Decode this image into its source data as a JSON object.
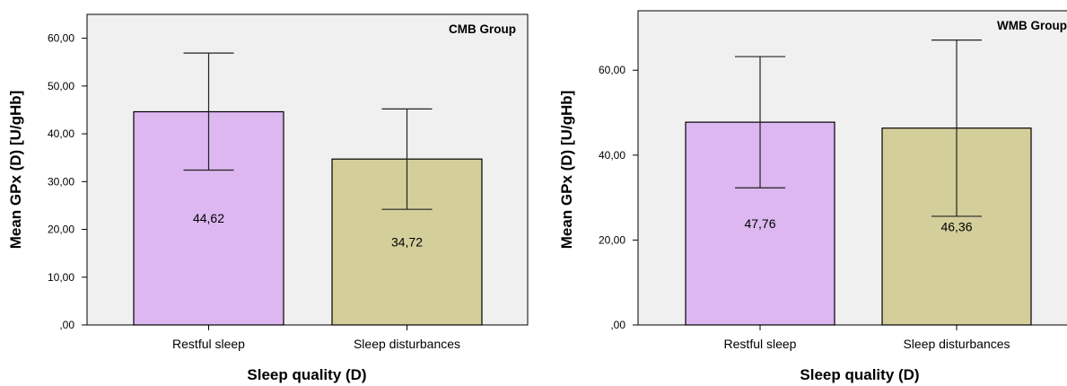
{
  "chart_data": [
    {
      "type": "bar",
      "title": "CMB Group",
      "xlabel": "Sleep quality (D)",
      "ylabel": "Mean GPx (D) [U/gHb]",
      "categories": [
        "Restful sleep",
        "Sleep disturbances"
      ],
      "values": [
        44.62,
        34.72
      ],
      "data_labels": [
        "44,62",
        "34,72"
      ],
      "error_low": [
        32.4,
        24.2
      ],
      "error_high": [
        56.9,
        45.2
      ],
      "bar_colors": [
        "#dcb7f0",
        "#d4cf9a"
      ],
      "ylim": [
        0,
        65
      ],
      "yticks": [
        0,
        10,
        20,
        30,
        40,
        50,
        60
      ],
      "ytick_labels": [
        ",00",
        "10,00",
        "20,00",
        "30,00",
        "40,00",
        "50,00",
        "60,00"
      ],
      "grid": false,
      "background": "#f0f0f0"
    },
    {
      "type": "bar",
      "title": "WMB Group",
      "xlabel": "Sleep quality (D)",
      "ylabel": "Mean GPx (D) [U/gHb]",
      "categories": [
        "Restful sleep",
        "Sleep disturbances"
      ],
      "values": [
        47.76,
        46.36
      ],
      "data_labels": [
        "47,76",
        "46,36"
      ],
      "error_low": [
        32.3,
        25.6
      ],
      "error_high": [
        63.2,
        67.1
      ],
      "bar_colors": [
        "#dcb7f0",
        "#d4cf9a"
      ],
      "ylim": [
        0,
        74
      ],
      "yticks": [
        0,
        20,
        40,
        60
      ],
      "ytick_labels": [
        ",00",
        "20,00",
        "40,00",
        "60,00"
      ],
      "grid": false,
      "background": "#f0f0f0"
    }
  ]
}
